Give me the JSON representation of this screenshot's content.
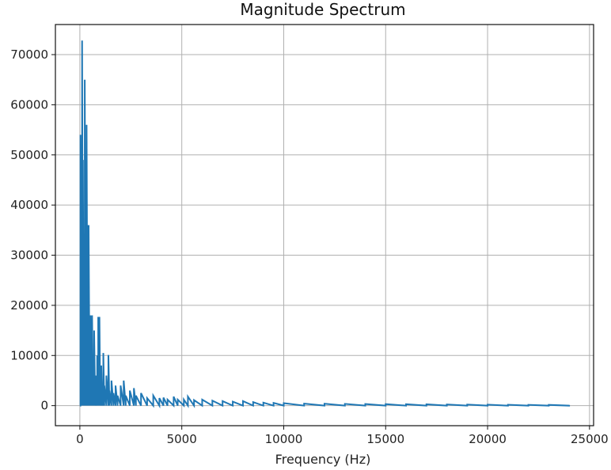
{
  "chart_data": {
    "type": "line",
    "title": "Magnitude Spectrum",
    "xlabel": "Frequency (Hz)",
    "ylabel": "",
    "xlim": [
      -1200,
      25200
    ],
    "ylim": [
      -4000,
      76000
    ],
    "xticks": [
      0,
      5000,
      10000,
      15000,
      20000,
      25000
    ],
    "xtick_labels": [
      "0",
      "5000",
      "10000",
      "15000",
      "20000",
      "25000"
    ],
    "yticks": [
      0,
      10000,
      20000,
      30000,
      40000,
      50000,
      60000,
      70000
    ],
    "ytick_labels": [
      "0",
      "10000",
      "20000",
      "30000",
      "40000",
      "50000",
      "60000",
      "70000"
    ],
    "grid": true,
    "series": [
      {
        "color": "#1f77b4",
        "peaks": [
          [
            0,
            0
          ],
          [
            30,
            54000
          ],
          [
            80,
            40000
          ],
          [
            110,
            72800
          ],
          [
            150,
            49000
          ],
          [
            190,
            30000
          ],
          [
            240,
            65000
          ],
          [
            290,
            50000
          ],
          [
            330,
            56000
          ],
          [
            380,
            36000
          ],
          [
            430,
            36000
          ],
          [
            480,
            12000
          ],
          [
            520,
            18000
          ],
          [
            560,
            6000
          ],
          [
            600,
            18000
          ],
          [
            650,
            8000
          ],
          [
            700,
            15000
          ],
          [
            750,
            4000
          ],
          [
            800,
            6000
          ],
          [
            850,
            10000
          ],
          [
            900,
            17700
          ],
          [
            960,
            17700
          ],
          [
            1000,
            5000
          ],
          [
            1050,
            8000
          ],
          [
            1100,
            3000
          ],
          [
            1150,
            10500
          ],
          [
            1200,
            4000
          ],
          [
            1300,
            6000
          ],
          [
            1400,
            10100
          ],
          [
            1450,
            3000
          ],
          [
            1550,
            5000
          ],
          [
            1650,
            2500
          ],
          [
            1750,
            4000
          ],
          [
            1850,
            2000
          ],
          [
            2000,
            4000
          ],
          [
            2150,
            5000
          ],
          [
            2250,
            2000
          ],
          [
            2450,
            3000
          ],
          [
            2650,
            3500
          ],
          [
            2750,
            2000
          ],
          [
            3000,
            2500
          ],
          [
            3300,
            1500
          ],
          [
            3600,
            2000
          ],
          [
            3900,
            1500
          ],
          [
            4100,
            1600
          ],
          [
            4300,
            1200
          ],
          [
            4600,
            1800
          ],
          [
            4800,
            1200
          ],
          [
            5100,
            1200
          ],
          [
            5300,
            1800
          ],
          [
            5600,
            1100
          ],
          [
            6000,
            1200
          ],
          [
            6500,
            1000
          ],
          [
            7000,
            900
          ],
          [
            7500,
            800
          ],
          [
            8000,
            900
          ],
          [
            8500,
            700
          ],
          [
            9000,
            600
          ],
          [
            9500,
            550
          ],
          [
            10000,
            500
          ],
          [
            11000,
            400
          ],
          [
            12000,
            380
          ],
          [
            13000,
            350
          ],
          [
            14000,
            320
          ],
          [
            15000,
            300
          ],
          [
            16000,
            280
          ],
          [
            17000,
            260
          ],
          [
            18000,
            240
          ],
          [
            19000,
            220
          ],
          [
            20000,
            200
          ],
          [
            21000,
            180
          ],
          [
            22000,
            160
          ],
          [
            23000,
            150
          ],
          [
            24000,
            150
          ]
        ]
      }
    ]
  }
}
